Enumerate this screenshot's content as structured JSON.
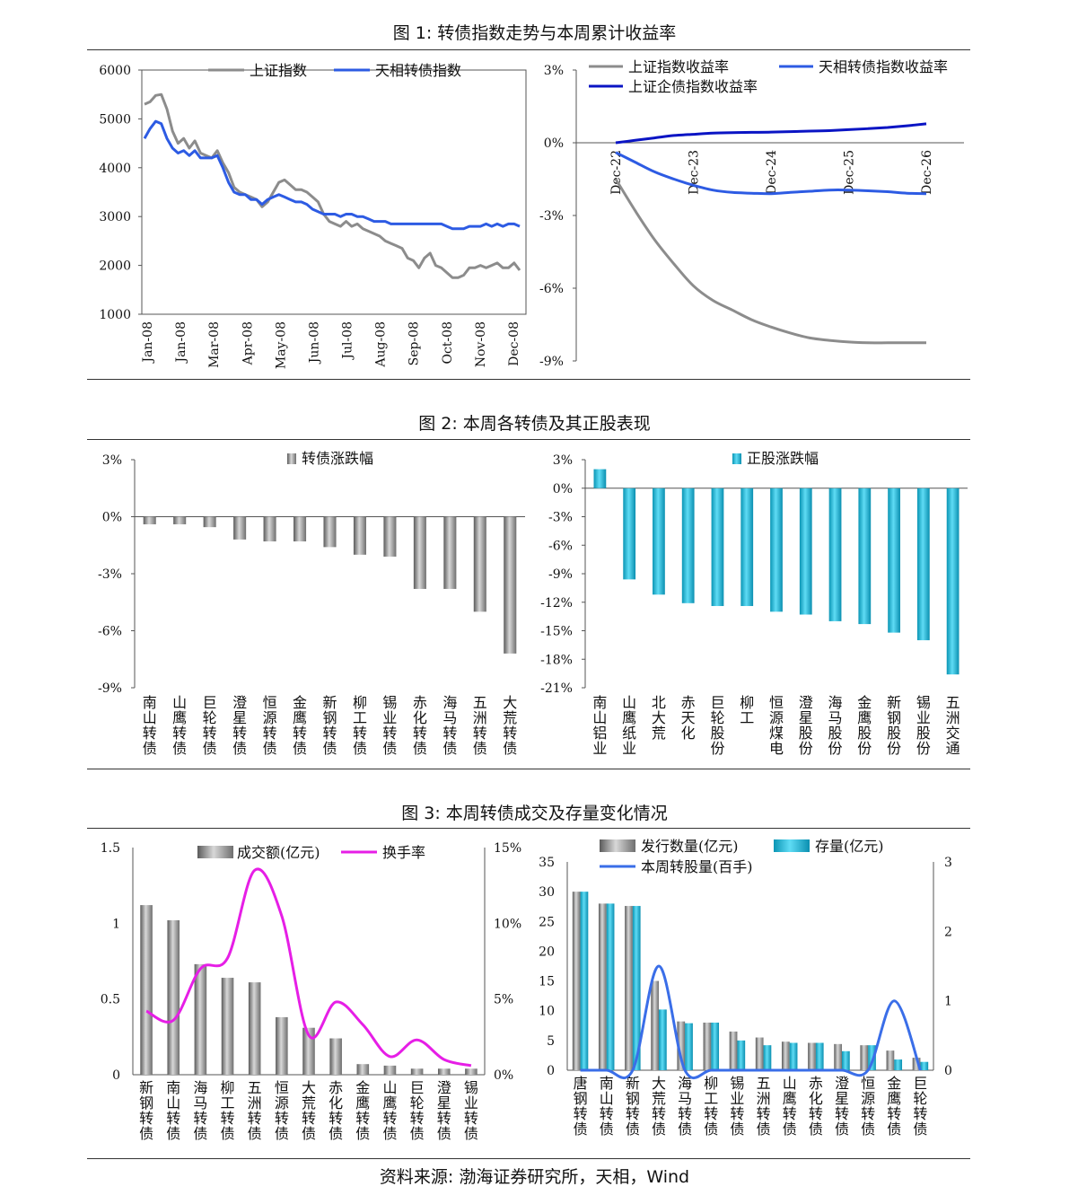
{
  "fig1": {
    "title": "图 1:  转债指数走势与本周累计收益率",
    "left": {
      "type": "line",
      "legend": [
        "上证指数",
        "天相转债指数"
      ],
      "colors": [
        "#8c8c8c",
        "#2d5be3"
      ],
      "yticks": [
        "6000",
        "5000",
        "4000",
        "3000",
        "2000",
        "1000"
      ],
      "ylim": [
        1000,
        6000
      ],
      "xticks": [
        "Jan-08",
        "Jan-08",
        "Mar-08",
        "Apr-08",
        "May-08",
        "Jun-08",
        "Jul-08",
        "Aug-08",
        "Sep-08",
        "Oct-08",
        "Nov-08",
        "Dec-08"
      ],
      "series": [
        {
          "name": "上证指数",
          "values": [
            5300,
            5350,
            5480,
            5500,
            5200,
            4750,
            4500,
            4600,
            4400,
            4550,
            4300,
            4250,
            4200,
            4350,
            4100,
            3900,
            3600,
            3500,
            3450,
            3400,
            3350,
            3200,
            3300,
            3500,
            3700,
            3750,
            3650,
            3550,
            3550,
            3500,
            3400,
            3300,
            3050,
            2900,
            2850,
            2800,
            2900,
            2800,
            2850,
            2750,
            2700,
            2650,
            2600,
            2500,
            2450,
            2400,
            2350,
            2150,
            2100,
            1950,
            2150,
            2250,
            2000,
            1950,
            1850,
            1750,
            1750,
            1800,
            1950,
            1950,
            2000,
            1950,
            2000,
            2050,
            1950,
            1950,
            2050,
            1900
          ]
        },
        {
          "name": "天相转债指数",
          "values": [
            4600,
            4800,
            4950,
            4900,
            4600,
            4400,
            4300,
            4350,
            4250,
            4350,
            4200,
            4200,
            4200,
            4250,
            4000,
            3700,
            3500,
            3450,
            3450,
            3350,
            3350,
            3250,
            3350,
            3400,
            3450,
            3400,
            3350,
            3300,
            3300,
            3250,
            3150,
            3100,
            3050,
            3050,
            3050,
            3000,
            3050,
            3050,
            3000,
            3000,
            2950,
            2900,
            2900,
            2900,
            2850,
            2850,
            2850,
            2850,
            2850,
            2850,
            2850,
            2850,
            2850,
            2850,
            2800,
            2750,
            2750,
            2750,
            2800,
            2800,
            2800,
            2850,
            2800,
            2850,
            2800,
            2850,
            2850,
            2800
          ]
        }
      ]
    },
    "right": {
      "type": "line",
      "legend": [
        "上证指数收益率",
        "天相转债指数收益率",
        "上证企债指数收益率"
      ],
      "colors": [
        "#8c8c8c",
        "#2d5be3",
        "#0a14c4"
      ],
      "yticks": [
        "3%",
        "0%",
        "-3%",
        "-6%",
        "-9%"
      ],
      "ylim": [
        -9,
        3
      ],
      "xticks": [
        "Dec-22",
        "Dec-23",
        "Dec-24",
        "Dec-25",
        "Dec-26"
      ],
      "series": [
        {
          "name": "上证指数收益率",
          "values": [
            -1.5,
            -2.8,
            -4.0,
            -5.0,
            -5.9,
            -6.5,
            -6.9,
            -7.3,
            -7.6,
            -7.85,
            -8.05,
            -8.15,
            -8.22,
            -8.25,
            -8.25,
            -8.25,
            -8.25
          ]
        },
        {
          "name": "天相转债指数收益率",
          "values": [
            -0.4,
            -0.8,
            -1.2,
            -1.5,
            -1.75,
            -1.95,
            -2.05,
            -2.08,
            -2.1,
            -2.05,
            -2.0,
            -1.95,
            -1.95,
            -1.98,
            -2.02,
            -2.08,
            -2.1
          ]
        },
        {
          "name": "上证企债指数收益率",
          "values": [
            0.0,
            0.1,
            0.2,
            0.3,
            0.35,
            0.4,
            0.42,
            0.43,
            0.44,
            0.46,
            0.48,
            0.5,
            0.54,
            0.58,
            0.63,
            0.7,
            0.78
          ]
        }
      ]
    }
  },
  "fig2": {
    "title": "图 2:  本周各转债及其正股表现",
    "left": {
      "type": "bar",
      "legend": "转债涨跌幅",
      "yticks": [
        "3%",
        "0%",
        "-3%",
        "-6%",
        "-9%"
      ],
      "ylim": [
        -9,
        3
      ],
      "categories": [
        "南山转债",
        "山鹰转债",
        "巨轮转债",
        "澄星转债",
        "恒源转债",
        "金鹰转债",
        "新钢转债",
        "柳工转债",
        "锡业转债",
        "赤化转债",
        "海马转债",
        "五洲转债",
        "大荒转债"
      ],
      "values": [
        -0.4,
        -0.4,
        -0.55,
        -1.2,
        -1.3,
        -1.3,
        -1.6,
        -2.0,
        -2.1,
        -3.8,
        -3.8,
        -5.0,
        -7.2
      ]
    },
    "right": {
      "type": "bar",
      "legend": "正股涨跌幅",
      "yticks": [
        "3%",
        "0%",
        "-3%",
        "-6%",
        "-9%",
        "-12%",
        "-15%",
        "-18%",
        "-21%"
      ],
      "ylim": [
        -21,
        3
      ],
      "categories": [
        "南山铝业",
        "山鹰纸业",
        "北大荒",
        "赤天化",
        "巨轮股份",
        "柳工",
        "恒源煤电",
        "澄星股份",
        "海马股份",
        "金鹰股份",
        "新钢股份",
        "锡业股份",
        "五洲交通"
      ],
      "values": [
        2.0,
        -9.6,
        -11.2,
        -12.1,
        -12.4,
        -12.4,
        -13.0,
        -13.3,
        -14.0,
        -14.3,
        -15.2,
        -16.0,
        -19.6
      ]
    }
  },
  "fig3": {
    "title": "图 3:  本周转债成交及存量变化情况",
    "left": {
      "type": "bar+line",
      "legend": [
        "成交额(亿元)",
        "换手率"
      ],
      "yticks_left": [
        "1.5",
        "1",
        "0.5",
        "0"
      ],
      "yticks_right": [
        "15%",
        "10%",
        "5%",
        "0%"
      ],
      "ylim_left": [
        0,
        1.5
      ],
      "ylim_right": [
        0,
        15
      ],
      "categories": [
        "新钢转债",
        "南山转债",
        "海马转债",
        "柳工转债",
        "五洲转债",
        "恒源转债",
        "大荒转债",
        "赤化转债",
        "金鹰转债",
        "山鹰转债",
        "巨轮转债",
        "澄星转债",
        "锡业转债"
      ],
      "bar_values": [
        1.12,
        1.02,
        0.73,
        0.64,
        0.61,
        0.38,
        0.31,
        0.24,
        0.07,
        0.06,
        0.04,
        0.04,
        0.04
      ],
      "line_values": [
        4.2,
        3.6,
        7.0,
        7.7,
        13.5,
        10.5,
        2.6,
        4.8,
        3.3,
        1.2,
        2.3,
        1.0,
        0.6
      ]
    },
    "right": {
      "type": "bar+line",
      "legend": [
        "发行数量(亿元)",
        "存量(亿元)",
        "本周转股量(百手)"
      ],
      "yticks_left": [
        "35",
        "30",
        "25",
        "20",
        "15",
        "10",
        "5",
        "0"
      ],
      "yticks_right": [
        "3",
        "2",
        "1",
        "0"
      ],
      "ylim_left": [
        0,
        35
      ],
      "ylim_right": [
        0,
        3
      ],
      "categories": [
        "唐钢转债",
        "南山转债",
        "新钢转债",
        "大荒转债",
        "海马转债",
        "柳工转债",
        "锡业转债",
        "五洲转债",
        "山鹰转债",
        "赤化转债",
        "澄星转债",
        "恒源转债",
        "金鹰转债",
        "巨轮转债"
      ],
      "issue": [
        30.0,
        28.0,
        27.6,
        15.0,
        8.2,
        8.0,
        6.5,
        5.5,
        4.8,
        4.6,
        4.4,
        4.2,
        3.3,
        2.1
      ],
      "stock": [
        30.0,
        28.0,
        27.6,
        10.2,
        7.9,
        8.0,
        5.0,
        4.2,
        4.6,
        4.6,
        3.2,
        4.2,
        1.8,
        1.4
      ],
      "conversion": [
        0,
        0,
        0,
        1.5,
        0,
        0,
        0,
        0,
        0,
        0,
        0,
        0,
        1.0,
        0
      ]
    }
  },
  "source": "资料来源:  渤海证券研究所，天相，Wind"
}
